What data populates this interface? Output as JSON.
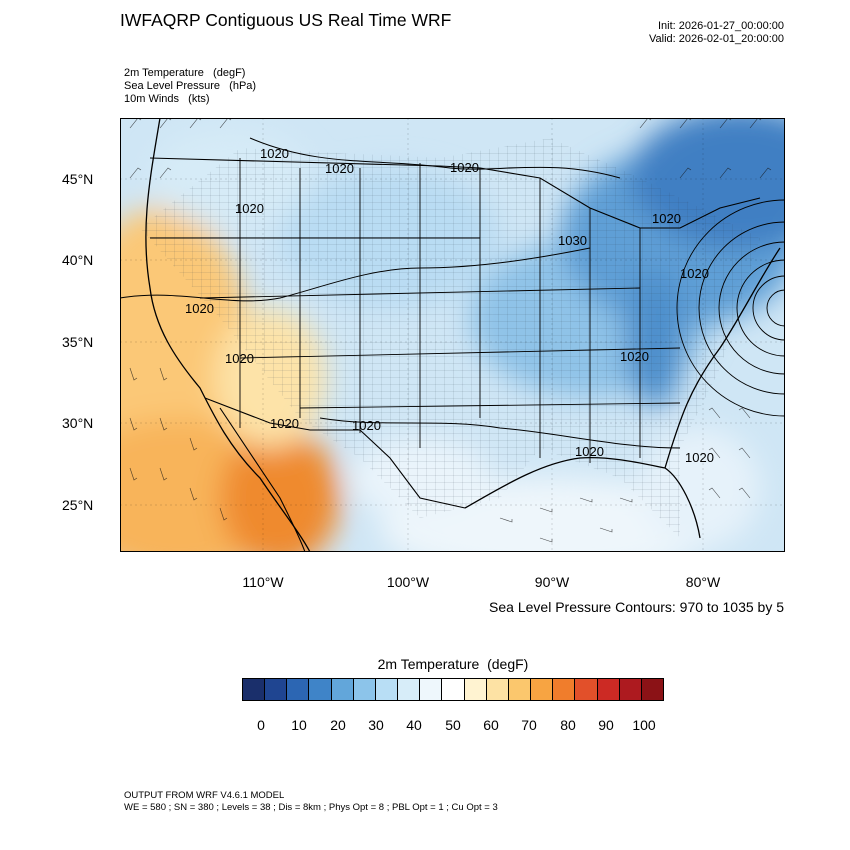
{
  "title": "IWFAQRP Contiguous US Real Time WRF",
  "init": "Init: 2026-01-27_00:00:00",
  "valid": "Valid: 2026-02-01_20:00:00",
  "variables": [
    "2m Temperature   (degF)",
    "Sea Level Pressure   (hPa)",
    "10m Winds   (kts)"
  ],
  "lat_labels": [
    "45°N",
    "40°N",
    "35°N",
    "30°N",
    "25°N"
  ],
  "lon_labels": [
    "110°W",
    "100°W",
    "90°W",
    "80°W"
  ],
  "isobar_labels": [
    "1020",
    "1020",
    "1020",
    "1020",
    "1030",
    "1020",
    "1020",
    "1020",
    "1020",
    "1020",
    "1020",
    "1020",
    "1020",
    "1020",
    "1020",
    "1020"
  ],
  "contour_note": "Sea Level Pressure Contours: 970 to 1035 by 5",
  "colorbar": {
    "title": "2m Temperature  (degF)",
    "labels": [
      "0",
      "10",
      "20",
      "30",
      "40",
      "50",
      "60",
      "70",
      "80",
      "90",
      "100"
    ],
    "colors": [
      "#1a2f6b",
      "#1f4591",
      "#2c66b3",
      "#3f84c8",
      "#62a6da",
      "#8cc4ea",
      "#b8def5",
      "#d7edf9",
      "#eef7fc",
      "#ffffff",
      "#fff3d1",
      "#fde2a4",
      "#fbc76d",
      "#f7a442",
      "#f07d2c",
      "#e2502a",
      "#cc2a24",
      "#ad1a1f",
      "#8b1216"
    ]
  },
  "footer": {
    "line1": "OUTPUT FROM WRF V4.6.1 MODEL",
    "line2": "WE = 580 ; SN = 380 ; Levels = 38 ; Dis = 8km ; Phys Opt = 8 ; PBL Opt = 1 ; Cu Opt = 3"
  }
}
